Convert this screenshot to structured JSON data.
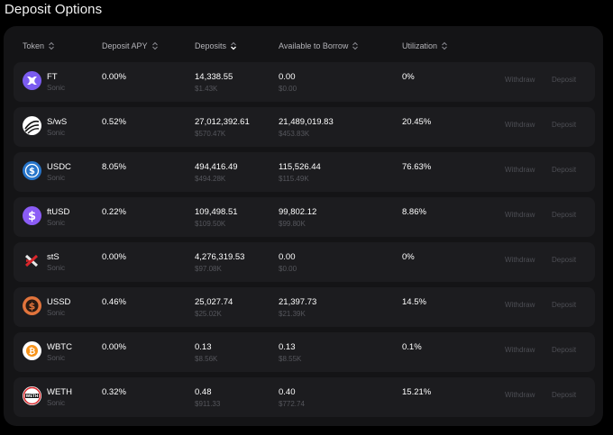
{
  "page": {
    "title": "Deposit Options"
  },
  "table": {
    "columns": [
      {
        "label": "Token",
        "icon": "sort-icon"
      },
      {
        "label": "Deposit APY",
        "icon": "sort-icon"
      },
      {
        "label": "Deposits",
        "icon": "sort-desc-icon"
      },
      {
        "label": "Available to Borrow",
        "icon": "sort-icon"
      },
      {
        "label": "Utilization",
        "icon": "sort-icon"
      }
    ],
    "actions": {
      "withdraw": "Withdraw",
      "deposit": "Deposit"
    },
    "rows": [
      {
        "token": "FT",
        "chain": "Sonic",
        "icon": "ft-token-icon",
        "apy": "0.00%",
        "deposits": "14,338.55",
        "deposits_usd": "$1.43K",
        "available": "0.00",
        "available_usd": "$0.00",
        "utilization": "0%"
      },
      {
        "token": "S/wS",
        "chain": "Sonic",
        "icon": "sonic-token-icon",
        "apy": "0.52%",
        "deposits": "27,012,392.61",
        "deposits_usd": "$570.47K",
        "available": "21,489,019.83",
        "available_usd": "$453.83K",
        "utilization": "20.45%"
      },
      {
        "token": "USDC",
        "chain": "Sonic",
        "icon": "usdc-token-icon",
        "apy": "8.05%",
        "deposits": "494,416.49",
        "deposits_usd": "$494.28K",
        "available": "115,526.44",
        "available_usd": "$115.49K",
        "utilization": "76.63%"
      },
      {
        "token": "ftUSD",
        "chain": "Sonic",
        "icon": "ftusd-token-icon",
        "apy": "0.22%",
        "deposits": "109,498.51",
        "deposits_usd": "$109.50K",
        "available": "99,802.12",
        "available_usd": "$99.80K",
        "utilization": "8.86%"
      },
      {
        "token": "stS",
        "chain": "Sonic",
        "icon": "sts-token-icon",
        "apy": "0.00%",
        "deposits": "4,276,319.53",
        "deposits_usd": "$97.08K",
        "available": "0.00",
        "available_usd": "$0.00",
        "utilization": "0%"
      },
      {
        "token": "USSD",
        "chain": "Sonic",
        "icon": "ussd-token-icon",
        "apy": "0.46%",
        "deposits": "25,027.74",
        "deposits_usd": "$25.02K",
        "available": "21,397.73",
        "available_usd": "$21.39K",
        "utilization": "14.5%"
      },
      {
        "token": "WBTC",
        "chain": "Sonic",
        "icon": "wbtc-token-icon",
        "apy": "0.00%",
        "deposits": "0.13",
        "deposits_usd": "$8.56K",
        "available": "0.13",
        "available_usd": "$8.55K",
        "utilization": "0.1%"
      },
      {
        "token": "WETH",
        "chain": "Sonic",
        "icon": "weth-token-icon",
        "apy": "0.32%",
        "deposits": "0.48",
        "deposits_usd": "$911.33",
        "available": "0.40",
        "available_usd": "$772.74",
        "utilization": "15.21%"
      }
    ]
  },
  "colors": {
    "background": "#000000",
    "panel": "#141416",
    "row": "#1c1c1f",
    "muted_text": "#55565c",
    "button_text": "#4d4e54"
  }
}
